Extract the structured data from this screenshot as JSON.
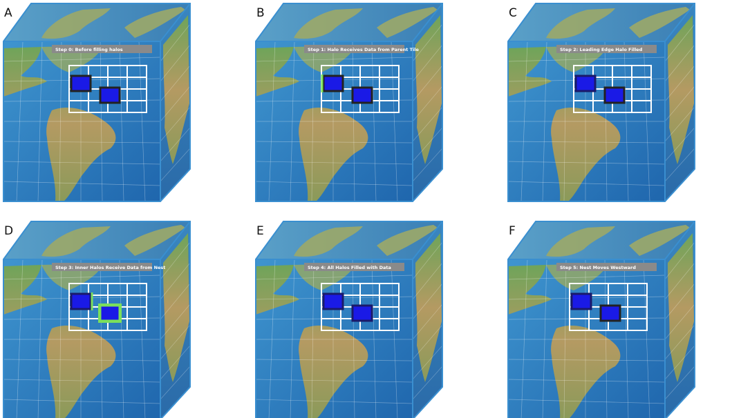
{
  "panels": [
    {
      "letter": "A",
      "step": "Step 0: Before filling halos"
    },
    {
      "letter": "B",
      "step": "Step 1: Halo Receives Data from Parent Tile"
    },
    {
      "letter": "C",
      "step": "Step 2: Leading Edge Halo Filled"
    },
    {
      "letter": "D",
      "step": "Step 3: Inner Halos Receive Data from Nest"
    },
    {
      "letter": "E",
      "step": "Step 4: All Halos Filled with Data"
    },
    {
      "letter": "F",
      "step": "Step 5: Nest Moves Westward"
    }
  ]
}
